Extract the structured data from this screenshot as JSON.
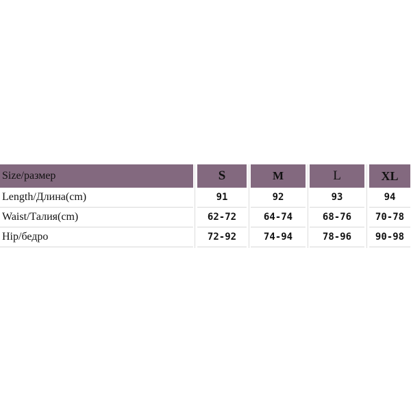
{
  "header": {
    "label": "Size/размер",
    "sizes": [
      "S",
      "M",
      "L",
      "XL"
    ]
  },
  "rows": [
    {
      "label": "Length/Длина(cm)",
      "values": [
        "91",
        "92",
        "93",
        "94"
      ]
    },
    {
      "label": "Waist/Талия(cm)",
      "values": [
        "62-72",
        "64-74",
        "68-76",
        "70-78"
      ]
    },
    {
      "label": "Hip/бедро",
      "values": [
        "72-92",
        "74-94",
        "78-96",
        "90-98"
      ]
    }
  ],
  "colors": {
    "header_bg": "#83697f"
  }
}
